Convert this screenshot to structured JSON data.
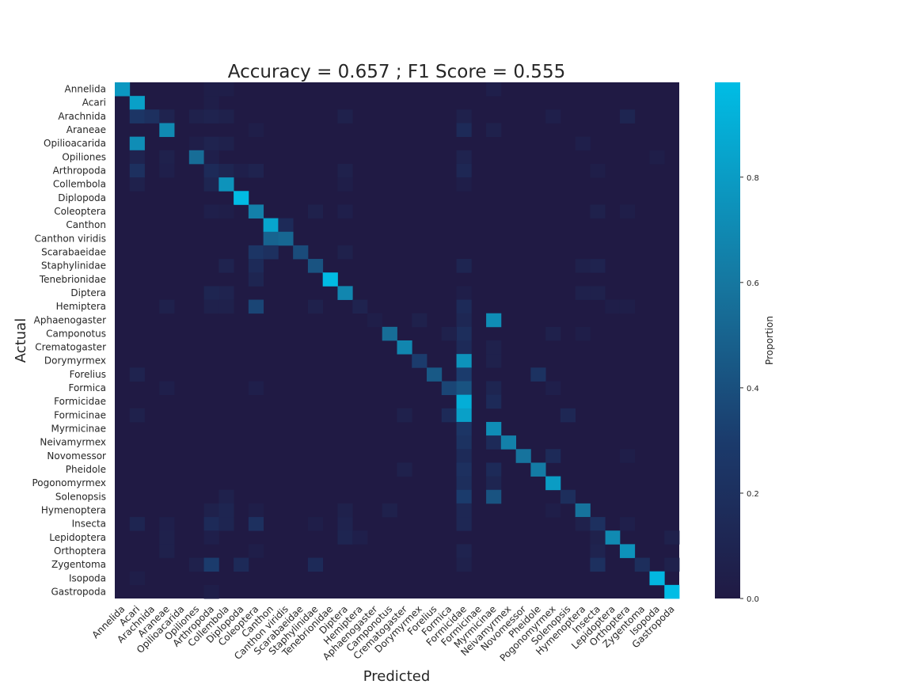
{
  "chart_data": {
    "type": "heatmap",
    "title": "Accuracy = 0.657 ; F1 Score = 0.555",
    "xlabel": "Predicted",
    "ylabel": "Actual",
    "colorbar_label": "Proportion",
    "colorbar_ticks": [
      "0.0",
      "0.2",
      "0.4",
      "0.6",
      "0.8"
    ],
    "colorbar_range": [
      0,
      0.98
    ],
    "colors": {
      "low": "#201a44",
      "mid": "#1b4b7e",
      "high": "#00bde5"
    },
    "labels": [
      "Annelida",
      "Acari",
      "Arachnida",
      "Araneae",
      "Opilioacarida",
      "Opiliones",
      "Arthropoda",
      "Collembola",
      "Diplopoda",
      "Coleoptera",
      "Canthon",
      "Canthon viridis",
      "Scarabaeidae",
      "Staphylinidae",
      "Tenebrionidae",
      "Diptera",
      "Hemiptera",
      "Aphaenogaster",
      "Camponotus",
      "Crematogaster",
      "Dorymyrmex",
      "Forelius",
      "Formica",
      "Formicidae",
      "Formicinae",
      "Myrmicinae",
      "Neivamyrmex",
      "Novomessor",
      "Pheidole",
      "Pogonomyrmex",
      "Solenopsis",
      "Hymenoptera",
      "Insecta",
      "Lepidoptera",
      "Orthoptera",
      "Zygentoma",
      "Isopoda",
      "Gastropoda"
    ],
    "cells": [
      [
        0,
        0,
        0.78
      ],
      [
        0,
        6,
        0.04
      ],
      [
        0,
        7,
        0.04
      ],
      [
        0,
        25,
        0.05
      ],
      [
        1,
        1,
        0.82
      ],
      [
        1,
        6,
        0.04
      ],
      [
        2,
        1,
        0.25
      ],
      [
        2,
        2,
        0.2
      ],
      [
        2,
        3,
        0.08
      ],
      [
        2,
        5,
        0.06
      ],
      [
        2,
        6,
        0.08
      ],
      [
        2,
        7,
        0.06
      ],
      [
        2,
        15,
        0.06
      ],
      [
        2,
        23,
        0.06
      ],
      [
        2,
        29,
        0.05
      ],
      [
        2,
        34,
        0.1
      ],
      [
        3,
        3,
        0.7
      ],
      [
        3,
        9,
        0.04
      ],
      [
        3,
        23,
        0.15
      ],
      [
        3,
        25,
        0.06
      ],
      [
        4,
        1,
        0.72
      ],
      [
        4,
        5,
        0.04
      ],
      [
        4,
        6,
        0.08
      ],
      [
        4,
        7,
        0.06
      ],
      [
        4,
        31,
        0.05
      ],
      [
        5,
        1,
        0.08
      ],
      [
        5,
        3,
        0.06
      ],
      [
        5,
        5,
        0.55
      ],
      [
        5,
        6,
        0.05
      ],
      [
        5,
        23,
        0.08
      ],
      [
        5,
        36,
        0.04
      ],
      [
        6,
        1,
        0.2
      ],
      [
        6,
        3,
        0.05
      ],
      [
        6,
        6,
        0.15
      ],
      [
        6,
        7,
        0.1
      ],
      [
        6,
        8,
        0.05
      ],
      [
        6,
        9,
        0.08
      ],
      [
        6,
        15,
        0.06
      ],
      [
        6,
        23,
        0.12
      ],
      [
        6,
        32,
        0.04
      ],
      [
        7,
        1,
        0.06
      ],
      [
        7,
        6,
        0.1
      ],
      [
        7,
        7,
        0.75
      ],
      [
        7,
        15,
        0.04
      ],
      [
        7,
        23,
        0.04
      ],
      [
        8,
        8,
        0.97
      ],
      [
        9,
        9,
        0.65
      ],
      [
        9,
        6,
        0.05
      ],
      [
        9,
        7,
        0.04
      ],
      [
        9,
        13,
        0.06
      ],
      [
        9,
        15,
        0.05
      ],
      [
        9,
        32,
        0.06
      ],
      [
        9,
        34,
        0.04
      ],
      [
        10,
        10,
        0.85
      ],
      [
        10,
        11,
        0.15
      ],
      [
        11,
        10,
        0.5
      ],
      [
        11,
        11,
        0.52
      ],
      [
        12,
        9,
        0.25
      ],
      [
        12,
        10,
        0.2
      ],
      [
        12,
        12,
        0.38
      ],
      [
        12,
        15,
        0.06
      ],
      [
        13,
        7,
        0.08
      ],
      [
        13,
        9,
        0.15
      ],
      [
        13,
        13,
        0.42
      ],
      [
        13,
        23,
        0.1
      ],
      [
        13,
        31,
        0.06
      ],
      [
        13,
        32,
        0.08
      ],
      [
        14,
        9,
        0.1
      ],
      [
        14,
        14,
        0.97
      ],
      [
        15,
        6,
        0.1
      ],
      [
        15,
        7,
        0.08
      ],
      [
        15,
        15,
        0.68
      ],
      [
        15,
        23,
        0.04
      ],
      [
        15,
        31,
        0.06
      ],
      [
        15,
        32,
        0.06
      ],
      [
        16,
        6,
        0.06
      ],
      [
        16,
        7,
        0.06
      ],
      [
        16,
        3,
        0.06
      ],
      [
        16,
        9,
        0.35
      ],
      [
        16,
        13,
        0.06
      ],
      [
        16,
        16,
        0.08
      ],
      [
        16,
        23,
        0.15
      ],
      [
        16,
        33,
        0.04
      ],
      [
        16,
        34,
        0.04
      ],
      [
        17,
        17,
        0.04
      ],
      [
        17,
        20,
        0.06
      ],
      [
        17,
        23,
        0.12
      ],
      [
        17,
        25,
        0.72
      ],
      [
        18,
        18,
        0.55
      ],
      [
        18,
        23,
        0.18
      ],
      [
        18,
        22,
        0.06
      ],
      [
        18,
        29,
        0.06
      ],
      [
        18,
        31,
        0.04
      ],
      [
        19,
        19,
        0.68
      ],
      [
        19,
        23,
        0.15
      ],
      [
        19,
        25,
        0.06
      ],
      [
        20,
        20,
        0.3
      ],
      [
        20,
        23,
        0.75
      ],
      [
        20,
        25,
        0.06
      ],
      [
        21,
        1,
        0.08
      ],
      [
        21,
        21,
        0.45
      ],
      [
        21,
        23,
        0.3
      ],
      [
        21,
        28,
        0.22
      ],
      [
        22,
        3,
        0.05
      ],
      [
        22,
        9,
        0.05
      ],
      [
        22,
        22,
        0.35
      ],
      [
        22,
        23,
        0.42
      ],
      [
        22,
        25,
        0.1
      ],
      [
        22,
        29,
        0.05
      ],
      [
        23,
        23,
        0.9
      ],
      [
        23,
        25,
        0.15
      ],
      [
        24,
        1,
        0.06
      ],
      [
        24,
        19,
        0.06
      ],
      [
        24,
        22,
        0.15
      ],
      [
        24,
        23,
        0.82
      ],
      [
        24,
        30,
        0.12
      ],
      [
        25,
        23,
        0.25
      ],
      [
        25,
        25,
        0.72
      ],
      [
        26,
        23,
        0.22
      ],
      [
        26,
        25,
        0.15
      ],
      [
        26,
        26,
        0.65
      ],
      [
        27,
        23,
        0.15
      ],
      [
        27,
        27,
        0.58
      ],
      [
        27,
        29,
        0.15
      ],
      [
        27,
        34,
        0.04
      ],
      [
        28,
        19,
        0.06
      ],
      [
        28,
        23,
        0.2
      ],
      [
        28,
        25,
        0.15
      ],
      [
        28,
        28,
        0.62
      ],
      [
        29,
        23,
        0.18
      ],
      [
        29,
        25,
        0.1
      ],
      [
        29,
        29,
        0.8
      ],
      [
        30,
        7,
        0.06
      ],
      [
        30,
        23,
        0.3
      ],
      [
        30,
        25,
        0.42
      ],
      [
        30,
        30,
        0.18
      ],
      [
        31,
        6,
        0.06
      ],
      [
        31,
        7,
        0.1
      ],
      [
        31,
        9,
        0.04
      ],
      [
        31,
        15,
        0.06
      ],
      [
        31,
        18,
        0.06
      ],
      [
        31,
        23,
        0.12
      ],
      [
        31,
        29,
        0.04
      ],
      [
        31,
        31,
        0.58
      ],
      [
        32,
        1,
        0.1
      ],
      [
        32,
        3,
        0.05
      ],
      [
        32,
        6,
        0.15
      ],
      [
        32,
        7,
        0.1
      ],
      [
        32,
        9,
        0.2
      ],
      [
        32,
        13,
        0.04
      ],
      [
        32,
        15,
        0.08
      ],
      [
        32,
        23,
        0.12
      ],
      [
        32,
        31,
        0.06
      ],
      [
        32,
        32,
        0.2
      ],
      [
        32,
        34,
        0.05
      ],
      [
        33,
        3,
        0.06
      ],
      [
        33,
        6,
        0.05
      ],
      [
        33,
        15,
        0.1
      ],
      [
        33,
        16,
        0.05
      ],
      [
        33,
        33,
        0.7
      ],
      [
        33,
        32,
        0.06
      ],
      [
        33,
        37,
        0.06
      ],
      [
        34,
        3,
        0.06
      ],
      [
        34,
        9,
        0.04
      ],
      [
        34,
        23,
        0.08
      ],
      [
        34,
        32,
        0.08
      ],
      [
        34,
        34,
        0.75
      ],
      [
        35,
        5,
        0.06
      ],
      [
        35,
        6,
        0.3
      ],
      [
        35,
        8,
        0.15
      ],
      [
        35,
        13,
        0.15
      ],
      [
        35,
        23,
        0.06
      ],
      [
        35,
        32,
        0.2
      ],
      [
        35,
        35,
        0.18
      ],
      [
        35,
        37,
        0.06
      ],
      [
        36,
        36,
        0.95
      ],
      [
        36,
        1,
        0.04
      ],
      [
        37,
        37,
        0.98
      ],
      [
        37,
        6,
        0.04
      ]
    ]
  }
}
